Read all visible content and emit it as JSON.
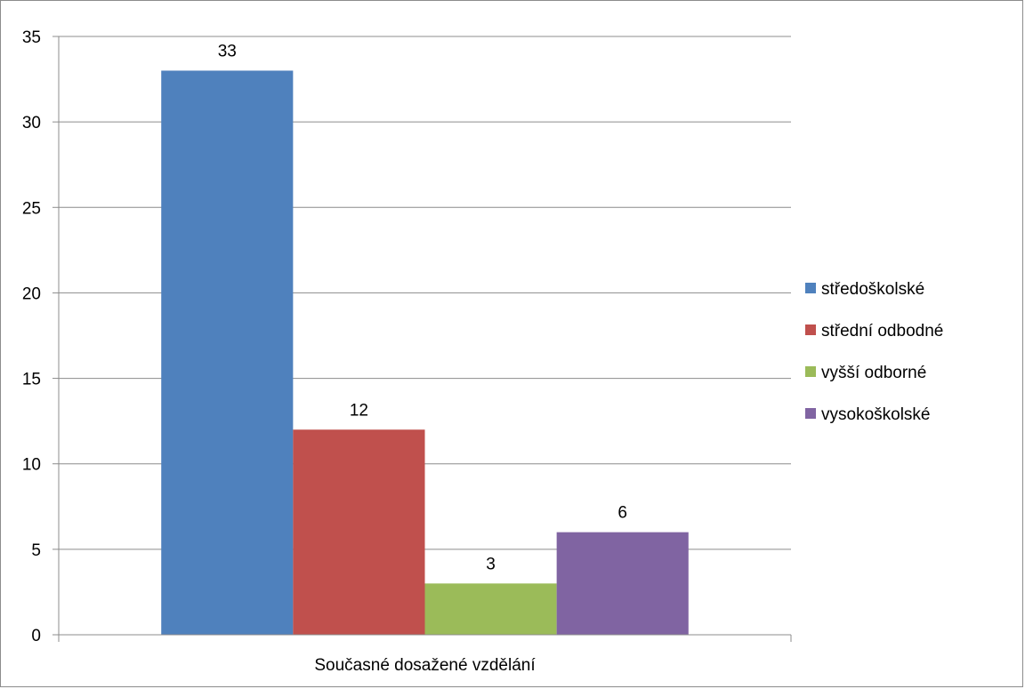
{
  "chart_data": {
    "type": "bar",
    "title": "",
    "xlabel": "",
    "ylabel": "",
    "categories": [
      "Současné dosažené vzdělání"
    ],
    "series": [
      {
        "name": "středoškolské",
        "values": [
          33
        ],
        "color": "#4F81BD"
      },
      {
        "name": "střední odbodné",
        "values": [
          12
        ],
        "color": "#C0504D"
      },
      {
        "name": "vyšší odborné",
        "values": [
          3
        ],
        "color": "#9BBB59"
      },
      {
        "name": "vysokoškolské",
        "values": [
          6
        ],
        "color": "#8064A2"
      }
    ],
    "ylim": [
      0,
      35
    ],
    "yticks": [
      0,
      5,
      10,
      15,
      20,
      25,
      30,
      35
    ],
    "grid": true,
    "legend_position": "right",
    "data_labels": true
  }
}
